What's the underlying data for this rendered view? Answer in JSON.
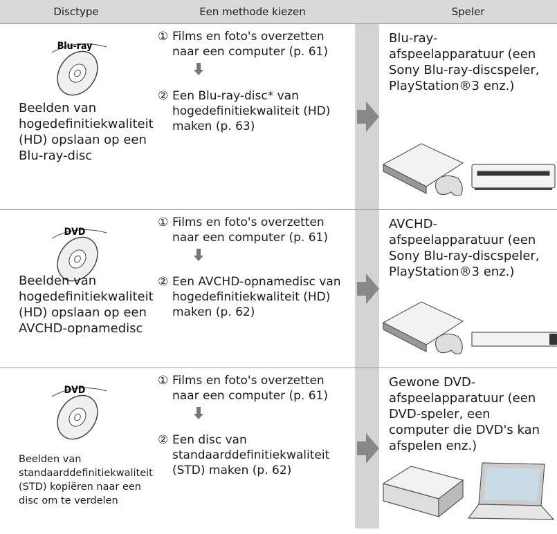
{
  "header": {
    "columns": [
      "Disctype",
      "Een methode kiezen",
      "Speler"
    ]
  },
  "rows": [
    {
      "disc_label": "Blu-ray",
      "description": "Beelden van hogedefinitiekwaliteit (HD) opslaan op een Blu-ray-disc",
      "steps": [
        {
          "marker": "①",
          "text": "Films en foto's overzetten naar een computer (p. 61)"
        },
        {
          "marker": "②",
          "text": "Een Blu-ray-disc* van hogedefinitiekwaliteit (HD) maken (p. 63)"
        }
      ],
      "player": "Blu-ray-afspeelapparatuur (een Sony Blu-ray-discspeler, PlayStation®3 enz.)"
    },
    {
      "disc_label": "DVD",
      "description": "Beelden van hogedefinitiekwaliteit (HD) opslaan op een AVCHD-opnamedisc",
      "steps": [
        {
          "marker": "①",
          "text": "Films en foto's overzetten naar een computer (p. 61)"
        },
        {
          "marker": "②",
          "text": "Een AVCHD-opnamedisc van hogedefinitiekwaliteit (HD) maken (p. 62)"
        }
      ],
      "player": "AVCHD-afspeelapparatuur (een Sony Blu-ray-discspeler, PlayStation®3 enz.)"
    },
    {
      "disc_label": "DVD",
      "description": "Beelden van standaarddefinitiekwaliteit (STD) kopiëren naar een disc om te verdelen",
      "steps": [
        {
          "marker": "①",
          "text": "Films en foto's overzetten naar een computer (p. 61)"
        },
        {
          "marker": "②",
          "text": "Een disc van standaarddefinitiekwaliteit (STD) maken (p. 62)"
        }
      ],
      "player": "Gewone DVD-afspeelapparatuur (een DVD-speler, een computer die DVD's kan afspelen enz.)"
    }
  ]
}
